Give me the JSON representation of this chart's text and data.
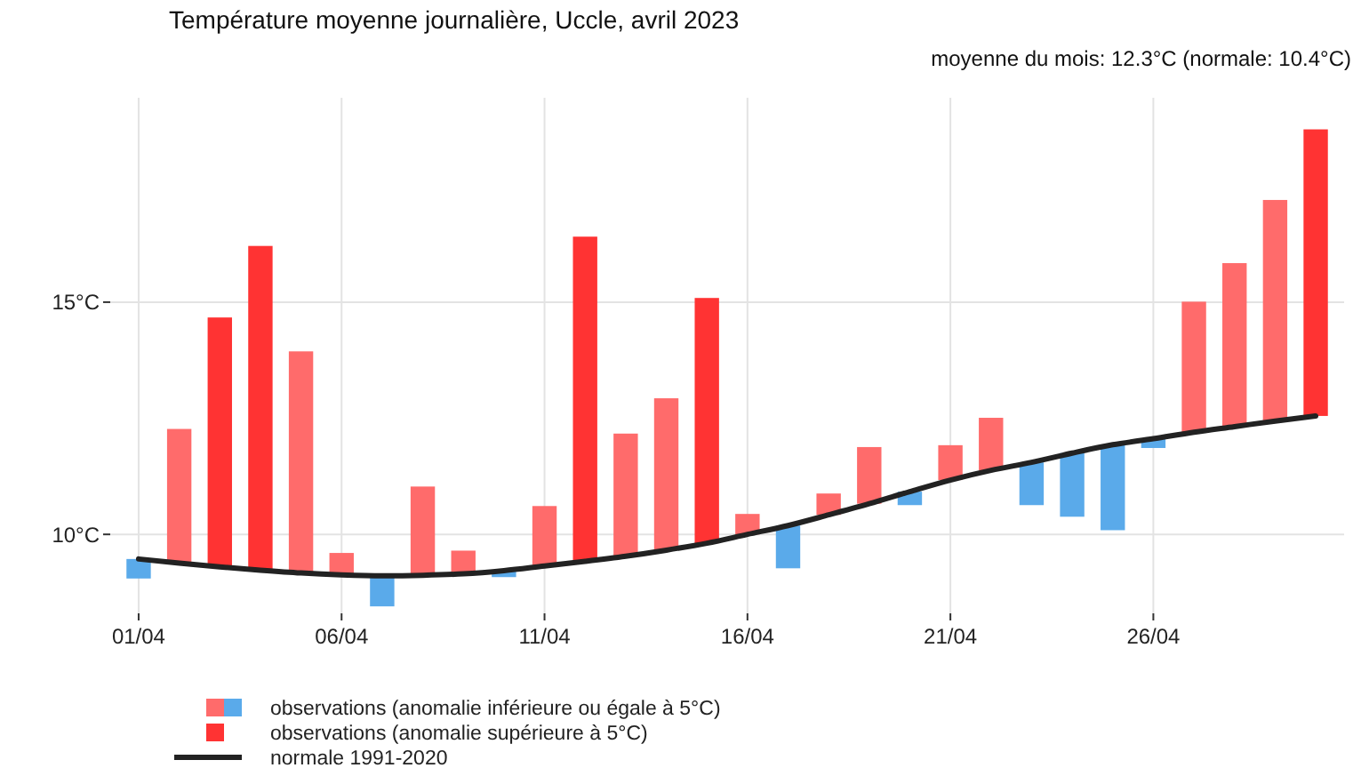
{
  "chart_data": {
    "type": "bar",
    "title": "Température moyenne journalière, Uccle, avril 2023",
    "annotations": [
      "moyenne du mois: 12.3°C (normale: 10.4°C)"
    ],
    "categories": [
      "01/04",
      null,
      null,
      null,
      null,
      "06/04",
      null,
      null,
      null,
      null,
      "11/04",
      null,
      null,
      null,
      null,
      "16/04",
      null,
      null,
      null,
      null,
      "21/04",
      null,
      null,
      null,
      null,
      "26/04",
      null,
      null,
      null,
      null
    ],
    "series": [
      {
        "name": "observations (anomalie inférieure ou égale à 5°C)",
        "color": "#ff6b6b",
        "base": [
          9.47,
          9.38,
          null,
          null,
          9.17,
          9.13,
          9.11,
          9.12,
          9.15,
          9.22,
          9.32,
          null,
          9.53,
          9.66,
          null,
          10.0,
          10.19,
          10.42,
          10.66,
          10.92,
          11.17,
          11.38,
          11.55,
          11.75,
          11.93,
          12.06,
          12.2,
          12.32,
          12.44,
          null
        ],
        "values": [
          -0.42,
          2.89,
          null,
          null,
          4.77,
          0.47,
          -0.66,
          1.91,
          0.5,
          -0.14,
          1.29,
          null,
          2.64,
          3.27,
          null,
          0.44,
          -0.92,
          0.46,
          1.22,
          -0.29,
          0.75,
          1.13,
          -0.92,
          -1.37,
          -1.84,
          -0.2,
          2.81,
          3.52,
          4.76,
          null
        ],
        "colors": [
          "#5aaaea",
          "#ff6b6b",
          "#ff6b6b",
          "#ff6b6b",
          "#ff6b6b",
          "#ff6b6b",
          "#5aaaea",
          "#ff6b6b",
          "#ff6b6b",
          "#5aaaea",
          "#ff6b6b",
          "#ff6b6b",
          "#ff6b6b",
          "#ff6b6b",
          "#ff6b6b",
          "#ff6b6b",
          "#5aaaea",
          "#ff6b6b",
          "#ff6b6b",
          "#5aaaea",
          "#ff6b6b",
          "#ff6b6b",
          "#5aaaea",
          "#5aaaea",
          "#5aaaea",
          "#5aaaea",
          "#ff6b6b",
          "#ff6b6b",
          "#ff6b6b",
          "#ff6b6b"
        ]
      },
      {
        "name": "observations (anomalie supérieure à 5°C)",
        "color": "#ff3333",
        "base": [
          null,
          null,
          9.3,
          9.23,
          null,
          null,
          null,
          null,
          null,
          null,
          null,
          9.42,
          null,
          null,
          9.81,
          null,
          null,
          null,
          null,
          null,
          null,
          null,
          null,
          null,
          null,
          null,
          null,
          null,
          null,
          12.55
        ],
        "values": [
          null,
          null,
          5.37,
          6.98,
          null,
          null,
          null,
          null,
          null,
          null,
          null,
          6.99,
          null,
          null,
          5.28,
          null,
          null,
          null,
          null,
          null,
          null,
          null,
          null,
          null,
          null,
          null,
          null,
          null,
          null,
          6.17
        ]
      },
      {
        "name": "normale 1991-2020",
        "type": "line",
        "color": "#222222",
        "values": [
          9.47,
          9.38,
          9.3,
          9.23,
          9.17,
          9.13,
          9.11,
          9.12,
          9.15,
          9.22,
          9.32,
          9.42,
          9.53,
          9.66,
          9.81,
          10.0,
          10.19,
          10.42,
          10.66,
          10.92,
          11.17,
          11.38,
          11.55,
          11.75,
          11.93,
          12.06,
          12.2,
          12.32,
          12.44,
          12.55
        ]
      }
    ],
    "ylim": [
      8.3,
      19.4
    ],
    "yticks": [
      {
        "value": 10,
        "label": "10°C"
      },
      {
        "value": 15,
        "label": "15°C"
      }
    ],
    "grid": true,
    "legend": "bottom"
  }
}
